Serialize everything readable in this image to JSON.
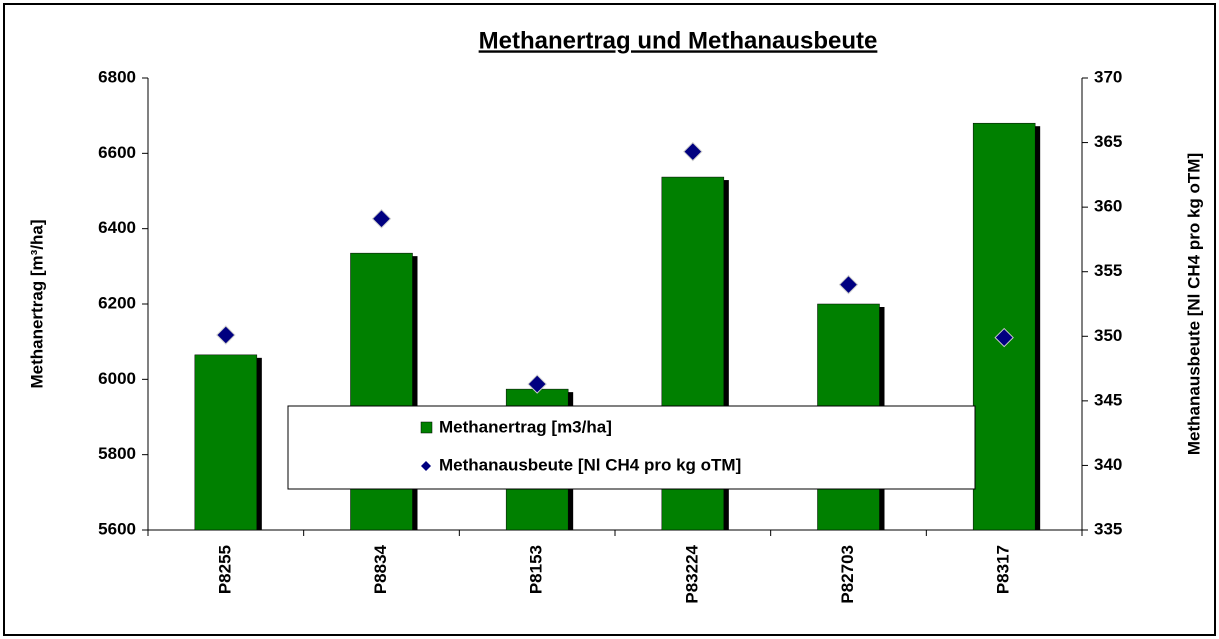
{
  "chart_data": {
    "type": "bar",
    "title": "Methanertrag und Methanausbeute",
    "y_label": "Methanertrag [m³/ha]",
    "y2_label": "Methanausbeute [Nl CH4 pro kg oTM]",
    "categories": [
      "P8255",
      "P8834",
      "P8153",
      "P83224",
      "P82703",
      "P8317"
    ],
    "series": [
      {
        "name": "Methanertrag [m3/ha]",
        "type": "bar",
        "color": "#008000",
        "values": [
          6065,
          6335,
          5974,
          6537,
          6200,
          6680
        ]
      },
      {
        "name": "Methanausbeute [Nl CH4 pro kg oTM]",
        "type": "scatter",
        "axis": "y2",
        "color": "#000080",
        "values": [
          350.1,
          359.1,
          346.3,
          364.3,
          354.0,
          349.9
        ]
      }
    ],
    "ylim": [
      5600,
      6800
    ],
    "yticks": [
      5600,
      5800,
      6000,
      6200,
      6400,
      6600,
      6800
    ],
    "y2lim": [
      335,
      370
    ],
    "y2ticks": [
      335,
      340,
      345,
      350,
      355,
      360,
      365,
      370
    ],
    "grid": false,
    "legend": "bottom"
  }
}
